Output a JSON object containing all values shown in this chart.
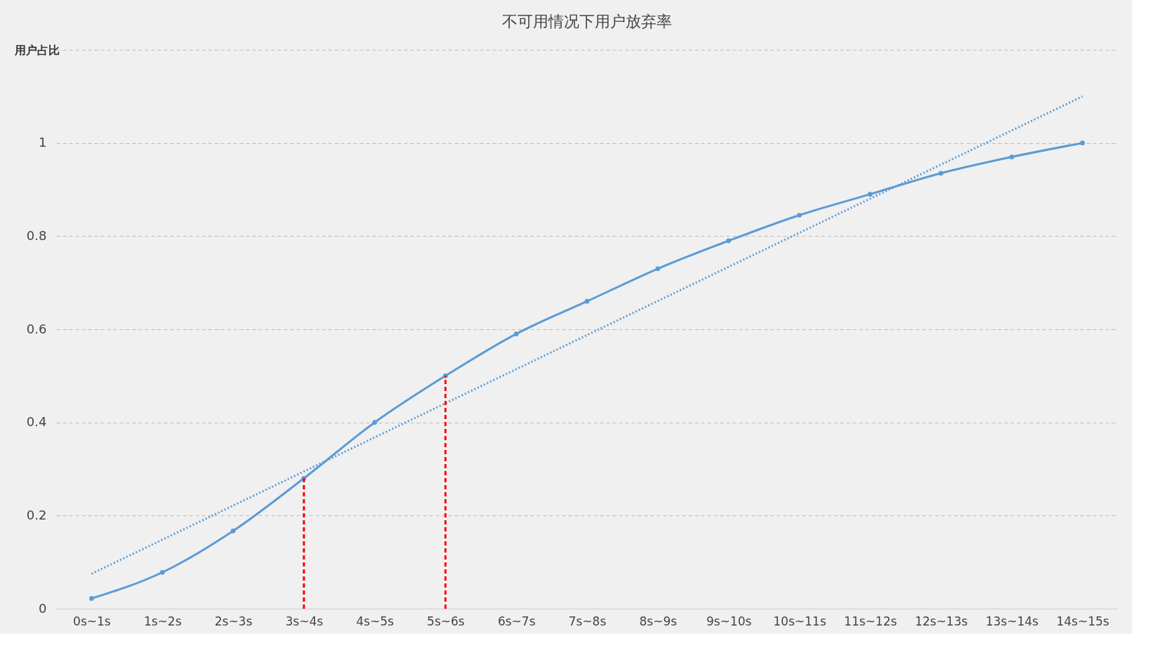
{
  "chart_data": {
    "type": "line",
    "title": "不可用情况下用户放弃率",
    "ylabel": "用户占比",
    "categories": [
      "0s~1s",
      "1s~2s",
      "2s~3s",
      "3s~4s",
      "4s~5s",
      "5s~6s",
      "6s~7s",
      "7s~8s",
      "8s~9s",
      "9s~10s",
      "10s~11s",
      "11s~12s",
      "12s~13s",
      "13s~14s",
      "14s~15s"
    ],
    "series": [
      {
        "color": "#5b9bd5",
        "values": [
          0.022,
          0.078,
          0.167,
          0.28,
          0.4,
          0.5,
          0.59,
          0.66,
          0.73,
          0.79,
          0.845,
          0.89,
          0.935,
          0.97,
          1.0
        ],
        "marker": "circle",
        "line_style": "solid"
      },
      {
        "color": "#5b9bd5",
        "x": [
          "0s~1s",
          "14s~15s"
        ],
        "values": [
          0.075,
          1.1
        ],
        "marker": "none",
        "line_style": "dotted"
      },
      {
        "color": "#ff0000",
        "x": [
          "3s~4s",
          "3s~4s"
        ],
        "values": [
          0,
          0.28
        ],
        "marker": "none",
        "line_style": "dashed"
      },
      {
        "color": "#ff0000",
        "x": [
          "5s~6s",
          "5s~6s"
        ],
        "values": [
          0,
          0.5
        ],
        "marker": "none",
        "line_style": "dashed"
      }
    ],
    "ylim": [
      0,
      1.2
    ],
    "yticks": [
      0,
      0.2,
      0.4,
      0.6,
      0.8,
      1,
      {
        "value": 1.2,
        "label": null
      }
    ],
    "grid": "y"
  }
}
